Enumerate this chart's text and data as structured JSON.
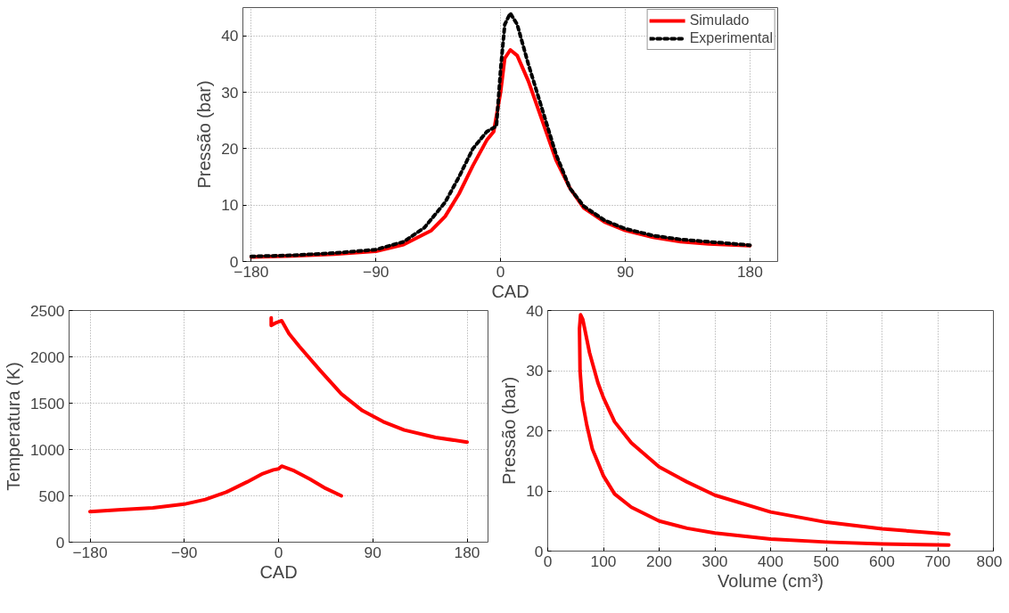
{
  "chart_data": [
    {
      "type": "line",
      "xlabel": "CAD",
      "ylabel": "Pressão (bar)",
      "xlim": [
        -186,
        200
      ],
      "ylim": [
        0,
        45
      ],
      "xticks": [
        -180,
        -90,
        0,
        90,
        180
      ],
      "yticks": [
        0,
        10,
        20,
        30,
        40
      ],
      "grid": true,
      "legend": "top right",
      "series": [
        {
          "name": "Simulado",
          "color": "#ff0000",
          "line_style": "solid",
          "x": [
            -180,
            -150,
            -120,
            -90,
            -70,
            -50,
            -40,
            -30,
            -20,
            -10,
            -5,
            0,
            3,
            7,
            12,
            20,
            30,
            40,
            50,
            60,
            75,
            90,
            110,
            130,
            150,
            180
          ],
          "values": [
            0.8,
            1,
            1.3,
            1.8,
            3,
            5.5,
            8,
            12,
            17,
            21.5,
            23,
            30,
            36,
            37.5,
            36.5,
            32,
            25,
            18,
            13,
            9.5,
            7,
            5.5,
            4.3,
            3.5,
            3.1,
            2.8
          ]
        },
        {
          "name": "Experimental",
          "color": "#000000",
          "line_style": "dotted",
          "x": [
            -180,
            -150,
            -120,
            -90,
            -70,
            -55,
            -40,
            -30,
            -20,
            -10,
            -3,
            0,
            3,
            7,
            12,
            20,
            30,
            40,
            50,
            60,
            75,
            90,
            110,
            130,
            150,
            180
          ],
          "values": [
            0.9,
            1.1,
            1.5,
            2.1,
            3.5,
            6,
            10.5,
            15,
            20,
            23,
            24,
            34,
            42,
            44,
            42,
            35,
            27,
            19,
            13,
            9.8,
            7.3,
            5.8,
            4.6,
            3.9,
            3.5,
            2.9
          ]
        }
      ]
    },
    {
      "type": "line",
      "xlabel": "CAD",
      "ylabel": "Temperatura (K)",
      "xlim": [
        -200,
        200
      ],
      "ylim": [
        0,
        2500
      ],
      "xticks": [
        -180,
        -90,
        0,
        90,
        180
      ],
      "yticks": [
        0,
        500,
        1000,
        1500,
        2000,
        2500
      ],
      "grid": true,
      "series": [
        {
          "color": "#ff0000",
          "line_style": "solid",
          "x": [
            -180,
            -150,
            -120,
            -90,
            -70,
            -50,
            -30,
            -15,
            -5,
            0,
            3,
            15,
            30,
            45,
            60
          ],
          "values": [
            330,
            350,
            370,
            410,
            460,
            540,
            650,
            740,
            780,
            790,
            820,
            770,
            680,
            580,
            500
          ]
        },
        {
          "color": "#ff0000",
          "line_style": "solid",
          "x": [
            -7,
            -7,
            -2,
            3,
            10,
            20,
            40,
            60,
            80,
            100,
            120,
            150,
            180
          ],
          "values": [
            2420,
            2340,
            2370,
            2390,
            2250,
            2110,
            1850,
            1600,
            1420,
            1300,
            1210,
            1130,
            1080
          ]
        }
      ]
    },
    {
      "type": "line",
      "xlabel": "Volume (cm³)",
      "ylabel": "Pressão (bar)",
      "xlim": [
        0,
        800
      ],
      "ylim": [
        0,
        40
      ],
      "xticks": [
        0,
        100,
        200,
        300,
        400,
        500,
        600,
        700,
        800
      ],
      "yticks": [
        0,
        10,
        20,
        30,
        40
      ],
      "grid": true,
      "series": [
        {
          "color": "#ff0000",
          "line_style": "solid",
          "x": [
            720,
            600,
            500,
            400,
            300,
            250,
            200,
            150,
            120,
            100,
            80,
            70,
            62,
            58,
            57,
            59,
            63,
            75,
            90,
            100,
            120,
            150,
            200,
            250,
            300,
            400,
            500,
            600,
            720
          ],
          "values": [
            1,
            1.2,
            1.5,
            2,
            3,
            3.8,
            5,
            7.3,
            9.5,
            12.5,
            17,
            21,
            25,
            30,
            37,
            39.3,
            38.5,
            33,
            28,
            25.5,
            21.5,
            18,
            14,
            11.5,
            9.3,
            6.5,
            4.8,
            3.7,
            2.8
          ]
        }
      ]
    }
  ]
}
